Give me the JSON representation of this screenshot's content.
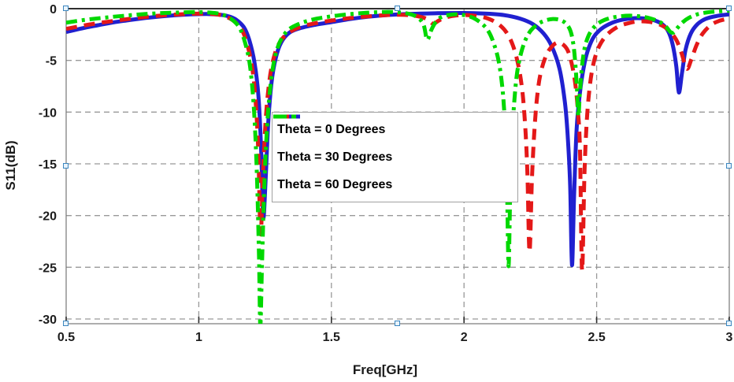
{
  "chart_data": {
    "type": "line",
    "title": "",
    "xlabel": "Freq[GHz]",
    "ylabel": "S11(dB)",
    "xlim": [
      0.5,
      3.0
    ],
    "ylim": [
      -30.5,
      0
    ],
    "grid": true,
    "legend_position": "inside-upper-middle-left",
    "x_ticks": [
      0.5,
      1,
      1.5,
      2,
      2.5,
      3
    ],
    "x_tick_labels": [
      "0.5",
      "1",
      "1.5",
      "2",
      "2.5",
      "3"
    ],
    "y_ticks": [
      0,
      -5,
      -10,
      -15,
      -20,
      -25,
      -30
    ],
    "y_tick_labels": [
      "0",
      "-5",
      "-10",
      "-15",
      "-20",
      "-25",
      "-30"
    ],
    "series": [
      {
        "name": "Theta = 0 Degrees",
        "color": "#2020d0",
        "style": "solid",
        "points": [
          [
            0.5,
            -2.25
          ],
          [
            0.56,
            -1.9
          ],
          [
            0.62,
            -1.6
          ],
          [
            0.68,
            -1.32
          ],
          [
            0.74,
            -1.1
          ],
          [
            0.8,
            -0.9
          ],
          [
            0.86,
            -0.74
          ],
          [
            0.92,
            -0.62
          ],
          [
            0.98,
            -0.54
          ],
          [
            1.03,
            -0.52
          ],
          [
            1.07,
            -0.56
          ],
          [
            1.11,
            -0.72
          ],
          [
            1.14,
            -1.05
          ],
          [
            1.17,
            -1.8
          ],
          [
            1.19,
            -3.0
          ],
          [
            1.21,
            -5.2
          ],
          [
            1.225,
            -8.5
          ],
          [
            1.235,
            -13.5
          ],
          [
            1.243,
            -20.2
          ],
          [
            1.252,
            -16.5
          ],
          [
            1.262,
            -11.0
          ],
          [
            1.275,
            -7.0
          ],
          [
            1.29,
            -4.8
          ],
          [
            1.31,
            -3.3
          ],
          [
            1.34,
            -2.35
          ],
          [
            1.38,
            -1.9
          ],
          [
            1.44,
            -1.55
          ],
          [
            1.5,
            -1.3
          ],
          [
            1.57,
            -1.0
          ],
          [
            1.64,
            -0.78
          ],
          [
            1.72,
            -0.6
          ],
          [
            1.8,
            -0.5
          ],
          [
            1.9,
            -0.44
          ],
          [
            2.0,
            -0.42
          ],
          [
            2.08,
            -0.48
          ],
          [
            2.15,
            -0.62
          ],
          [
            2.21,
            -0.95
          ],
          [
            2.26,
            -1.5
          ],
          [
            2.3,
            -2.4
          ],
          [
            2.33,
            -3.6
          ],
          [
            2.36,
            -5.8
          ],
          [
            2.38,
            -9.0
          ],
          [
            2.39,
            -12.0
          ],
          [
            2.4,
            -17.0
          ],
          [
            2.407,
            -24.8
          ],
          [
            2.415,
            -18.0
          ],
          [
            2.425,
            -11.5
          ],
          [
            2.44,
            -7.5
          ],
          [
            2.455,
            -5.2
          ],
          [
            2.47,
            -3.8
          ],
          [
            2.49,
            -2.7
          ],
          [
            2.52,
            -1.9
          ],
          [
            2.56,
            -1.35
          ],
          [
            2.6,
            -1.05
          ],
          [
            2.64,
            -0.92
          ],
          [
            2.68,
            -0.95
          ],
          [
            2.72,
            -1.15
          ],
          [
            2.75,
            -1.55
          ],
          [
            2.77,
            -2.2
          ],
          [
            2.786,
            -3.4
          ],
          [
            2.8,
            -5.5
          ],
          [
            2.81,
            -8.1
          ],
          [
            2.822,
            -6.2
          ],
          [
            2.835,
            -4.0
          ],
          [
            2.855,
            -2.4
          ],
          [
            2.88,
            -1.5
          ],
          [
            2.91,
            -1.0
          ],
          [
            2.95,
            -0.72
          ],
          [
            3.0,
            -0.55
          ]
        ]
      },
      {
        "name": "Theta = 30 Degrees",
        "color": "#e41818",
        "style": "dashed",
        "points": [
          [
            0.5,
            -1.95
          ],
          [
            0.56,
            -1.66
          ],
          [
            0.62,
            -1.4
          ],
          [
            0.68,
            -1.18
          ],
          [
            0.74,
            -0.98
          ],
          [
            0.8,
            -0.8
          ],
          [
            0.86,
            -0.66
          ],
          [
            0.92,
            -0.56
          ],
          [
            0.98,
            -0.49
          ],
          [
            1.03,
            -0.49
          ],
          [
            1.07,
            -0.56
          ],
          [
            1.1,
            -0.75
          ],
          [
            1.13,
            -1.15
          ],
          [
            1.16,
            -1.95
          ],
          [
            1.18,
            -3.2
          ],
          [
            1.2,
            -5.5
          ],
          [
            1.213,
            -8.5
          ],
          [
            1.224,
            -13.5
          ],
          [
            1.233,
            -21.8
          ],
          [
            1.242,
            -16.0
          ],
          [
            1.252,
            -10.8
          ],
          [
            1.265,
            -7.2
          ],
          [
            1.28,
            -5.0
          ],
          [
            1.3,
            -3.5
          ],
          [
            1.33,
            -2.5
          ],
          [
            1.38,
            -1.8
          ],
          [
            1.44,
            -1.4
          ],
          [
            1.5,
            -1.15
          ],
          [
            1.58,
            -0.88
          ],
          [
            1.66,
            -0.7
          ],
          [
            1.73,
            -0.6
          ],
          [
            1.79,
            -0.62
          ],
          [
            1.83,
            -0.75
          ],
          [
            1.86,
            -1.0
          ],
          [
            1.883,
            -1.45
          ],
          [
            1.905,
            -1.15
          ],
          [
            1.93,
            -0.85
          ],
          [
            1.97,
            -0.66
          ],
          [
            2.01,
            -0.62
          ],
          [
            2.05,
            -0.72
          ],
          [
            2.09,
            -0.95
          ],
          [
            2.13,
            -1.5
          ],
          [
            2.16,
            -2.3
          ],
          [
            2.185,
            -3.6
          ],
          [
            2.205,
            -5.5
          ],
          [
            2.22,
            -8.0
          ],
          [
            2.231,
            -11.5
          ],
          [
            2.239,
            -16.0
          ],
          [
            2.247,
            -23.5
          ],
          [
            2.256,
            -16.5
          ],
          [
            2.266,
            -11.5
          ],
          [
            2.277,
            -8.2
          ],
          [
            2.29,
            -6.1
          ],
          [
            2.31,
            -4.5
          ],
          [
            2.33,
            -3.7
          ],
          [
            2.35,
            -3.3
          ],
          [
            2.37,
            -3.4
          ],
          [
            2.39,
            -4.0
          ],
          [
            2.405,
            -5.2
          ],
          [
            2.418,
            -7.0
          ],
          [
            2.428,
            -9.5
          ],
          [
            2.437,
            -13.5
          ],
          [
            2.445,
            -25.3
          ],
          [
            2.454,
            -16.0
          ],
          [
            2.463,
            -10.8
          ],
          [
            2.475,
            -7.3
          ],
          [
            2.49,
            -5.1
          ],
          [
            2.51,
            -3.6
          ],
          [
            2.54,
            -2.5
          ],
          [
            2.58,
            -1.75
          ],
          [
            2.62,
            -1.4
          ],
          [
            2.66,
            -1.22
          ],
          [
            2.7,
            -1.28
          ],
          [
            2.74,
            -1.55
          ],
          [
            2.77,
            -2.05
          ],
          [
            2.8,
            -3.0
          ],
          [
            2.82,
            -4.3
          ],
          [
            2.84,
            -5.8
          ],
          [
            2.857,
            -4.9
          ],
          [
            2.877,
            -3.5
          ],
          [
            2.9,
            -2.4
          ],
          [
            2.93,
            -1.6
          ],
          [
            2.96,
            -1.2
          ],
          [
            3.0,
            -0.95
          ]
        ]
      },
      {
        "name": "Theta = 60 Degrees",
        "color": "#00d800",
        "style": "dash-dot",
        "points": [
          [
            0.5,
            -1.35
          ],
          [
            0.56,
            -1.12
          ],
          [
            0.62,
            -0.94
          ],
          [
            0.68,
            -0.78
          ],
          [
            0.74,
            -0.64
          ],
          [
            0.8,
            -0.52
          ],
          [
            0.86,
            -0.43
          ],
          [
            0.92,
            -0.37
          ],
          [
            0.98,
            -0.33
          ],
          [
            1.02,
            -0.34
          ],
          [
            1.06,
            -0.42
          ],
          [
            1.09,
            -0.58
          ],
          [
            1.12,
            -0.95
          ],
          [
            1.15,
            -1.7
          ],
          [
            1.17,
            -2.9
          ],
          [
            1.19,
            -5.0
          ],
          [
            1.203,
            -8.0
          ],
          [
            1.213,
            -12.0
          ],
          [
            1.221,
            -17.5
          ],
          [
            1.227,
            -24.0
          ],
          [
            1.232,
            -30.6
          ],
          [
            1.238,
            -25.0
          ],
          [
            1.246,
            -18.0
          ],
          [
            1.255,
            -12.5
          ],
          [
            1.265,
            -8.8
          ],
          [
            1.277,
            -6.1
          ],
          [
            1.292,
            -4.2
          ],
          [
            1.312,
            -2.9
          ],
          [
            1.34,
            -2.0
          ],
          [
            1.38,
            -1.45
          ],
          [
            1.43,
            -1.05
          ],
          [
            1.49,
            -0.78
          ],
          [
            1.56,
            -0.55
          ],
          [
            1.63,
            -0.4
          ],
          [
            1.7,
            -0.32
          ],
          [
            1.755,
            -0.36
          ],
          [
            1.8,
            -0.55
          ],
          [
            1.828,
            -0.9
          ],
          [
            1.848,
            -1.6
          ],
          [
            1.861,
            -3.0
          ],
          [
            1.876,
            -2.1
          ],
          [
            1.893,
            -1.3
          ],
          [
            1.915,
            -0.8
          ],
          [
            1.945,
            -0.6
          ],
          [
            1.975,
            -0.55
          ],
          [
            2.005,
            -0.65
          ],
          [
            2.035,
            -0.9
          ],
          [
            2.065,
            -1.4
          ],
          [
            2.09,
            -2.1
          ],
          [
            2.11,
            -3.2
          ],
          [
            2.13,
            -5.0
          ],
          [
            2.144,
            -7.5
          ],
          [
            2.153,
            -10.5
          ],
          [
            2.159,
            -14.0
          ],
          [
            2.163,
            -18.5
          ],
          [
            2.168,
            -24.9
          ],
          [
            2.174,
            -18.0
          ],
          [
            2.181,
            -12.5
          ],
          [
            2.19,
            -8.8
          ],
          [
            2.2,
            -6.2
          ],
          [
            2.215,
            -4.3
          ],
          [
            2.232,
            -3.0
          ],
          [
            2.252,
            -2.1
          ],
          [
            2.278,
            -1.5
          ],
          [
            2.305,
            -1.15
          ],
          [
            2.335,
            -1.0
          ],
          [
            2.362,
            -1.1
          ],
          [
            2.385,
            -1.45
          ],
          [
            2.402,
            -2.2
          ],
          [
            2.413,
            -3.6
          ],
          [
            2.42,
            -5.5
          ],
          [
            2.4265,
            -8.0
          ],
          [
            2.431,
            -10.4
          ],
          [
            2.437,
            -8.0
          ],
          [
            2.445,
            -5.5
          ],
          [
            2.455,
            -3.8
          ],
          [
            2.468,
            -2.7
          ],
          [
            2.485,
            -1.95
          ],
          [
            2.51,
            -1.35
          ],
          [
            2.545,
            -0.95
          ],
          [
            2.585,
            -0.75
          ],
          [
            2.625,
            -0.68
          ],
          [
            2.665,
            -0.75
          ],
          [
            2.7,
            -0.92
          ],
          [
            2.735,
            -1.25
          ],
          [
            2.76,
            -1.7
          ],
          [
            2.778,
            -2.25
          ],
          [
            2.79,
            -2.3
          ],
          [
            2.805,
            -1.85
          ],
          [
            2.825,
            -1.3
          ],
          [
            2.848,
            -0.88
          ],
          [
            2.875,
            -0.58
          ],
          [
            2.905,
            -0.4
          ],
          [
            2.945,
            -0.28
          ],
          [
            3.0,
            -0.2
          ]
        ]
      }
    ]
  },
  "colors": {
    "grid": "#999999",
    "axis_text": "#1c1c1c",
    "legend_border": "#a0a0a0",
    "selection_handle": "#3c87c0"
  }
}
